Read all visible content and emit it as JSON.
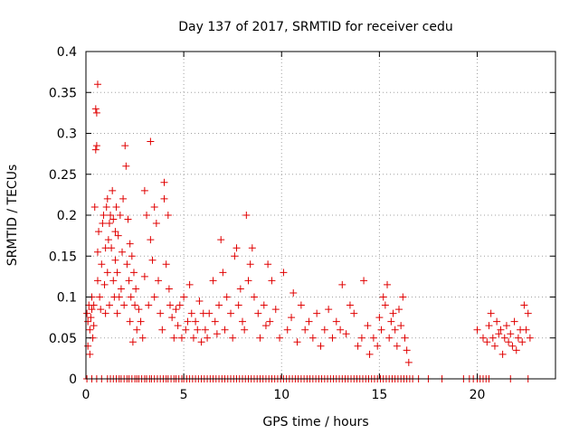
{
  "chart_data": {
    "type": "scatter",
    "title": "Day 137 of 2017, SRMTID for receiver cedu",
    "xlabel": "GPS time / hours",
    "ylabel": "SRMTID / TECUs",
    "xlim": [
      0,
      24
    ],
    "ylim": [
      0,
      0.4
    ],
    "xticks": [
      0,
      5,
      10,
      15,
      20
    ],
    "yticks": [
      0,
      0.05,
      0.1,
      0.15,
      0.2,
      0.25,
      0.3,
      0.35,
      0.4
    ],
    "xtick_labels": [
      "0",
      "5",
      "10",
      "15",
      "20"
    ],
    "ytick_labels": [
      "0",
      "0.05",
      "0.1",
      "0.15",
      "0.2",
      "0.25",
      "0.3",
      "0.35",
      "0.4"
    ],
    "grid": true,
    "marker": "+",
    "color": "#e00000",
    "series": [
      {
        "name": "SRMTID",
        "x": [
          0.05,
          0.1,
          0.1,
          0.15,
          0.2,
          0.2,
          0.25,
          0.3,
          0.3,
          0.35,
          0.4,
          0.4,
          0.45,
          0.5,
          0.5,
          0.55,
          0.55,
          0.6,
          0.6,
          0.6,
          0.65,
          0.7,
          0.75,
          0.8,
          0.85,
          0.9,
          0.95,
          1.0,
          1.0,
          1.05,
          1.1,
          1.1,
          1.15,
          1.2,
          1.2,
          1.25,
          1.3,
          1.35,
          1.4,
          1.4,
          1.45,
          1.5,
          1.5,
          1.55,
          1.6,
          1.6,
          1.65,
          1.7,
          1.75,
          1.8,
          1.85,
          1.9,
          1.95,
          2.0,
          2.05,
          2.1,
          2.15,
          2.2,
          2.25,
          2.25,
          2.3,
          2.35,
          2.4,
          2.45,
          2.5,
          2.55,
          2.6,
          2.7,
          2.8,
          2.9,
          3.0,
          3.0,
          3.1,
          3.2,
          3.3,
          3.3,
          3.4,
          3.5,
          3.5,
          3.6,
          3.7,
          3.8,
          3.9,
          4.0,
          4.0,
          4.1,
          4.2,
          4.25,
          4.3,
          4.4,
          4.5,
          4.6,
          4.7,
          4.8,
          4.9,
          5.0,
          5.1,
          5.2,
          5.3,
          5.4,
          5.5,
          5.6,
          5.7,
          5.8,
          5.9,
          6.0,
          6.1,
          6.2,
          6.3,
          6.5,
          6.6,
          6.7,
          6.8,
          6.9,
          7.0,
          7.1,
          7.2,
          7.4,
          7.5,
          7.6,
          7.7,
          7.8,
          7.9,
          8.0,
          8.1,
          8.2,
          8.3,
          8.4,
          8.5,
          8.6,
          8.8,
          8.9,
          9.1,
          9.2,
          9.3,
          9.4,
          9.5,
          9.7,
          9.9,
          10.1,
          10.3,
          10.5,
          10.6,
          10.8,
          11.0,
          11.2,
          11.4,
          11.6,
          11.8,
          12.0,
          12.2,
          12.4,
          12.6,
          12.8,
          13.0,
          13.1,
          13.3,
          13.5,
          13.7,
          13.9,
          14.1,
          14.2,
          14.4,
          14.5,
          14.7,
          14.9,
          15.0,
          15.1,
          15.2,
          15.3,
          15.4,
          15.5,
          15.6,
          15.7,
          15.8,
          15.9,
          16.0,
          16.1,
          16.2,
          16.3,
          16.4,
          16.5,
          20.0,
          20.3,
          20.5,
          20.6,
          20.7,
          20.8,
          20.9,
          21.0,
          21.1,
          21.2,
          21.3,
          21.4,
          21.5,
          21.6,
          21.7,
          21.8,
          21.9,
          22.0,
          22.1,
          22.2,
          22.3,
          22.4,
          22.5,
          22.6,
          22.7
        ],
        "y": [
          0.08,
          0.04,
          0.07,
          0.09,
          0.06,
          0.03,
          0.075,
          0.1,
          0.085,
          0.05,
          0.09,
          0.065,
          0.21,
          0.28,
          0.33,
          0.325,
          0.285,
          0.36,
          0.155,
          0.12,
          0.18,
          0.1,
          0.085,
          0.14,
          0.19,
          0.2,
          0.115,
          0.16,
          0.08,
          0.21,
          0.13,
          0.22,
          0.17,
          0.09,
          0.19,
          0.2,
          0.16,
          0.23,
          0.12,
          0.195,
          0.1,
          0.18,
          0.145,
          0.21,
          0.08,
          0.13,
          0.175,
          0.1,
          0.2,
          0.11,
          0.155,
          0.22,
          0.09,
          0.285,
          0.26,
          0.14,
          0.195,
          0.12,
          0.165,
          0.07,
          0.1,
          0.15,
          0.045,
          0.13,
          0.09,
          0.11,
          0.06,
          0.085,
          0.07,
          0.05,
          0.23,
          0.125,
          0.2,
          0.09,
          0.17,
          0.29,
          0.145,
          0.21,
          0.1,
          0.19,
          0.12,
          0.08,
          0.06,
          0.22,
          0.24,
          0.14,
          0.2,
          0.11,
          0.09,
          0.075,
          0.05,
          0.085,
          0.065,
          0.09,
          0.05,
          0.1,
          0.06,
          0.07,
          0.115,
          0.08,
          0.05,
          0.07,
          0.06,
          0.095,
          0.045,
          0.08,
          0.06,
          0.05,
          0.08,
          0.12,
          0.07,
          0.055,
          0.09,
          0.17,
          0.13,
          0.06,
          0.1,
          0.08,
          0.05,
          0.15,
          0.16,
          0.09,
          0.11,
          0.07,
          0.06,
          0.2,
          0.12,
          0.14,
          0.16,
          0.1,
          0.08,
          0.05,
          0.09,
          0.065,
          0.14,
          0.07,
          0.12,
          0.085,
          0.05,
          0.13,
          0.06,
          0.075,
          0.105,
          0.045,
          0.09,
          0.06,
          0.07,
          0.05,
          0.08,
          0.04,
          0.06,
          0.085,
          0.05,
          0.07,
          0.06,
          0.115,
          0.055,
          0.09,
          0.08,
          0.04,
          0.05,
          0.12,
          0.065,
          0.03,
          0.05,
          0.04,
          0.075,
          0.06,
          0.1,
          0.09,
          0.115,
          0.05,
          0.07,
          0.08,
          0.06,
          0.04,
          0.085,
          0.065,
          0.1,
          0.05,
          0.035,
          0.02,
          0.06,
          0.05,
          0.045,
          0.065,
          0.08,
          0.05,
          0.04,
          0.07,
          0.055,
          0.06,
          0.03,
          0.05,
          0.065,
          0.045,
          0.055,
          0.04,
          0.07,
          0.035,
          0.05,
          0.06,
          0.045,
          0.09,
          0.06,
          0.08,
          0.05
        ],
        "zeros_x": [
          0.05,
          0.3,
          0.55,
          0.8,
          1.1,
          1.25,
          1.4,
          1.55,
          1.7,
          1.8,
          1.95,
          2.1,
          2.2,
          2.35,
          2.5,
          2.6,
          2.7,
          2.85,
          3.0,
          3.1,
          3.25,
          3.35,
          3.5,
          3.65,
          3.8,
          3.95,
          4.1,
          4.2,
          4.35,
          4.5,
          4.6,
          4.75,
          4.9,
          5.0,
          5.15,
          5.3,
          5.45,
          5.6,
          5.75,
          5.9,
          6.05,
          6.2,
          6.35,
          6.5,
          6.65,
          6.8,
          6.95,
          7.1,
          7.25,
          7.4,
          7.55,
          7.7,
          7.85,
          8.0,
          8.15,
          8.3,
          8.45,
          8.6,
          8.75,
          8.9,
          9.05,
          9.2,
          9.35,
          9.5,
          9.65,
          9.8,
          9.95,
          10.1,
          10.25,
          10.4,
          10.55,
          10.7,
          10.85,
          11.0,
          11.15,
          11.3,
          11.45,
          11.6,
          11.75,
          11.9,
          12.05,
          12.2,
          12.35,
          12.5,
          12.65,
          12.8,
          12.95,
          13.1,
          13.25,
          13.4,
          13.55,
          13.7,
          13.85,
          14.0,
          14.15,
          14.3,
          14.45,
          14.6,
          14.75,
          14.9,
          15.05,
          15.2,
          15.35,
          15.5,
          15.65,
          15.8,
          15.95,
          16.1,
          16.25,
          16.4,
          16.55,
          16.7,
          17.0,
          17.5,
          18.2,
          19.3,
          19.6,
          19.8,
          20.0,
          20.15,
          20.3,
          20.45,
          20.6,
          21.7,
          22.6
        ]
      }
    ]
  }
}
